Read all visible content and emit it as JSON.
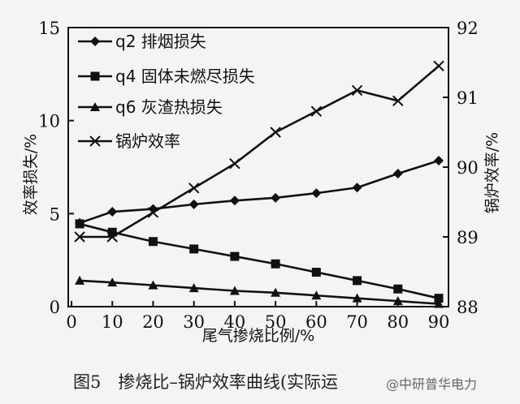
{
  "chart_data": {
    "type": "line",
    "x": [
      2,
      10,
      20,
      30,
      40,
      50,
      60,
      70,
      80,
      90
    ],
    "xlabel": "尾气掺烧比例/%",
    "ylabel_left": "效率损失/%",
    "ylabel_right": "锅炉效率/%",
    "xlim": [
      2,
      90
    ],
    "ylim_left": [
      0,
      15
    ],
    "ylim_right": [
      88,
      92
    ],
    "x_ticks": [
      0,
      10,
      20,
      30,
      40,
      50,
      60,
      70,
      80,
      90
    ],
    "x_tick_labels": [
      "0",
      "10",
      "20",
      "30",
      "40",
      "50",
      "60",
      "70",
      "80",
      "90"
    ],
    "y_left_ticks": [
      0,
      5,
      10,
      15
    ],
    "y_left_tick_labels": [
      "0",
      "5",
      "10",
      "15"
    ],
    "y_right_ticks": [
      88,
      89,
      90,
      91,
      92
    ],
    "y_right_tick_labels": [
      "88",
      "89",
      "90",
      "91",
      "92"
    ],
    "legend_position": "top-left",
    "grid": false,
    "series": [
      {
        "name": "q2 排烟损失",
        "marker": "diamond",
        "axis": "left",
        "values": [
          4.5,
          5.1,
          5.25,
          5.5,
          5.7,
          5.85,
          6.1,
          6.4,
          7.15,
          7.85
        ]
      },
      {
        "name": "q4 固体未燃尽损失",
        "marker": "square",
        "axis": "left",
        "values": [
          4.45,
          4.0,
          3.5,
          3.1,
          2.7,
          2.3,
          1.85,
          1.4,
          0.95,
          0.45
        ]
      },
      {
        "name": "q6 灰渣热损失",
        "marker": "triangle",
        "axis": "left",
        "values": [
          1.4,
          1.3,
          1.15,
          1.0,
          0.85,
          0.75,
          0.6,
          0.45,
          0.3,
          0.15
        ]
      },
      {
        "name": "锅炉效率",
        "marker": "x",
        "axis": "right",
        "values": [
          89.0,
          89.0,
          89.35,
          89.7,
          90.05,
          90.5,
          90.8,
          91.1,
          90.95,
          91.45
        ]
      }
    ]
  },
  "caption": "图5　掺烧比–锅炉效率曲线(实际运",
  "watermark": "@中研普华电力"
}
